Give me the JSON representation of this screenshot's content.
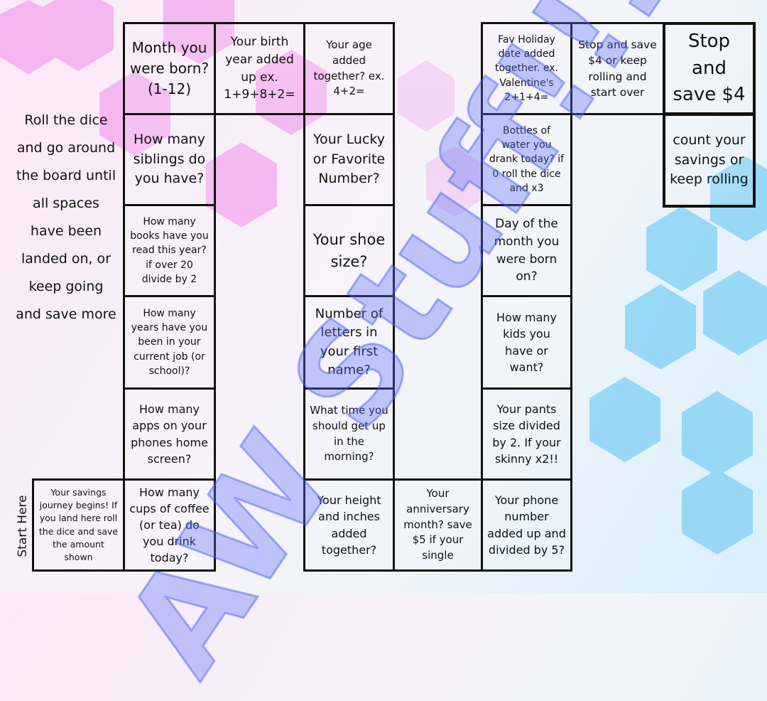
{
  "instructions": "Roll the dice and go around the board until all spaces have been landed on, or keep going and save more",
  "start_label": "Start Here",
  "watermark": "AW Stuff!!!",
  "cells": [
    "Month you were born? (1-12)",
    "How many siblings do you have?",
    "How many books have you read this year? if over 20 divide by 2",
    "How many years have you been in your current job (or school)?",
    "How many apps on your phones home screen?",
    "How many cups of coffee (or tea) do you drink today?",
    "Your savings journey begins! If you land here roll the dice and save the amount shown",
    "Your birth year added up ex. 1+9+8+2=",
    "Your age added together? ex. 4+2=",
    "Your Lucky or Favorite Number?",
    "Your shoe size?",
    "Number of letters in your first name?",
    "What time you should get up in the morning?",
    "Your height and inches added together?",
    "Your anniversary month? save $5 if your single",
    "Fav Holiday date added together. ex. Valentine's 2+1+4=",
    "Bottles of water you drank today? if 0 roll the dice and x3",
    "Day of the month you were born on?",
    "How many kids you have or want?",
    "Your pants size divided by 2. If your skinny x2!!",
    "Your phone number added up and divided by 5?",
    "Stop and save $4 or keep rolling and start over",
    "Stop and save $4",
    "count your savings or keep rolling"
  ]
}
